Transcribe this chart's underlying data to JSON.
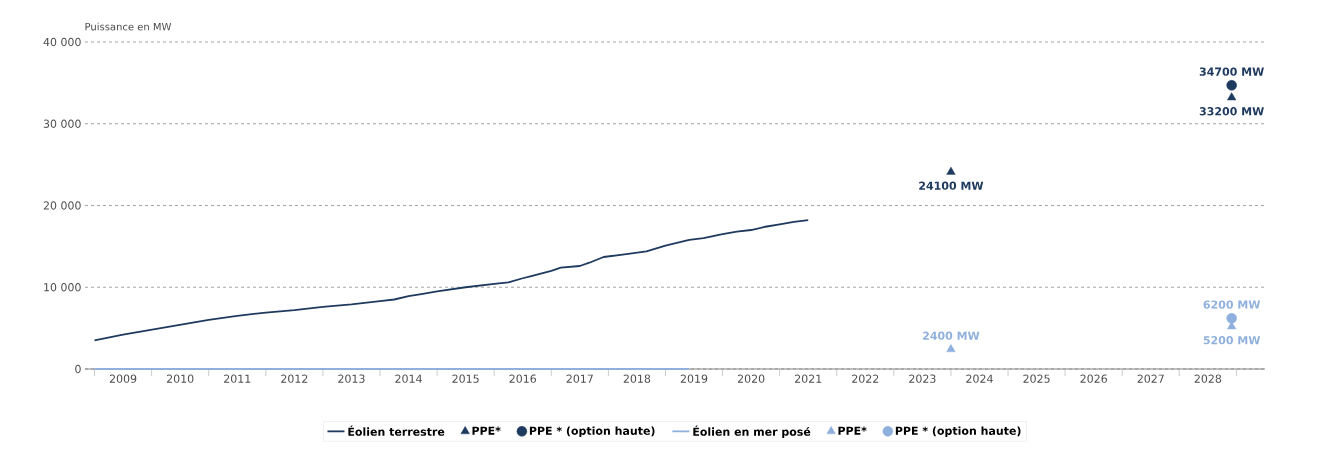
{
  "chart_data": {
    "type": "line",
    "ylabel": "Puissance en MW",
    "xlim": [
      "2008-11",
      "2029-07"
    ],
    "xticks": [
      {
        "value": "2009",
        "label": null
      },
      {
        "value": "2009-07",
        "label": "2009"
      },
      {
        "value": "2010",
        "label": null
      },
      {
        "value": "2010-07",
        "label": "2010"
      },
      {
        "value": "2011",
        "label": null
      },
      {
        "value": "2011-07",
        "label": "2011"
      },
      {
        "value": "2012",
        "label": null
      },
      {
        "value": "2012-07",
        "label": "2012"
      },
      {
        "value": "2013",
        "label": null
      },
      {
        "value": "2013-07",
        "label": "2013"
      },
      {
        "value": "2014",
        "label": null
      },
      {
        "value": "2014-07",
        "label": "2014"
      },
      {
        "value": "2015",
        "label": null
      },
      {
        "value": "2015-07",
        "label": "2015"
      },
      {
        "value": "2016",
        "label": null
      },
      {
        "value": "2016-07",
        "label": "2016"
      },
      {
        "value": "2017",
        "label": null
      },
      {
        "value": "2017-07",
        "label": "2017"
      },
      {
        "value": "2018",
        "label": null
      },
      {
        "value": "2018-07",
        "label": "2018"
      },
      {
        "value": "2019",
        "label": null
      },
      {
        "value": "2019-07",
        "label": "2019"
      },
      {
        "value": "2020",
        "label": null
      },
      {
        "value": "2020-07",
        "label": "2020"
      },
      {
        "value": "2021",
        "label": null
      },
      {
        "value": "2021-07",
        "label": "2021"
      },
      {
        "value": "2022",
        "label": null
      },
      {
        "value": "2022-07",
        "label": "2022"
      },
      {
        "value": "2023",
        "label": null
      },
      {
        "value": "2023-07",
        "label": "2023"
      },
      {
        "value": "2024",
        "label": null
      },
      {
        "value": "2024-07",
        "label": "2024"
      },
      {
        "value": "2025",
        "label": null
      },
      {
        "value": "2025-07",
        "label": "2025"
      },
      {
        "value": "2026",
        "label": null
      },
      {
        "value": "2026-07",
        "label": "2026"
      },
      {
        "value": "2027",
        "label": null
      },
      {
        "value": "2027-07",
        "label": "2027"
      },
      {
        "value": "2028",
        "label": null
      },
      {
        "value": "2028-07",
        "label": "2028"
      },
      {
        "value": "2029",
        "label": null
      }
    ],
    "ylim": [
      0,
      40000
    ],
    "yticks": [
      {
        "value": 0,
        "label": "0"
      },
      {
        "value": 10000,
        "label": "10 000"
      },
      {
        "value": 20000,
        "label": "20 000"
      },
      {
        "value": 30000,
        "label": "30 000"
      },
      {
        "value": 40000,
        "label": "40 000"
      }
    ],
    "grid": "y",
    "legend": "bottom",
    "series": [
      {
        "name": "Éolien terrestre",
        "color": "#1f3a5f",
        "marker": "none",
        "x": [
          "2009-01",
          "2009-07",
          "2010-01",
          "2010-07",
          "2011-01",
          "2011-07",
          "2012-01",
          "2012-07",
          "2013-01",
          "2013-07",
          "2014-01",
          "2014-04",
          "2014-07",
          "2014-10",
          "2015-01",
          "2015-07",
          "2016-01",
          "2016-04",
          "2016-07",
          "2016-09",
          "2017-01",
          "2017-03",
          "2017-07",
          "2017-09",
          "2017-12",
          "2018-04",
          "2018-09",
          "2019-01",
          "2019-06",
          "2019-09",
          "2020-01",
          "2020-04",
          "2020-07",
          "2020-10",
          "2021-01",
          "2021-04",
          "2021-07"
        ],
        "values": [
          3500,
          4200,
          4800,
          5400,
          6000,
          6500,
          6900,
          7200,
          7600,
          7900,
          8300,
          8500,
          8900,
          9200,
          9500,
          10000,
          10400,
          10600,
          11100,
          11400,
          12000,
          12400,
          12600,
          13000,
          13700,
          14000,
          14400,
          15100,
          15800,
          16000,
          16500,
          16800,
          17000,
          17400,
          17700,
          18000,
          18200
        ]
      },
      {
        "name": "PPE*",
        "type": "scatter",
        "color": "#1f3a5f",
        "marker": "triangle",
        "x": [
          "2024-01",
          "2028-12"
        ],
        "values": [
          24100,
          33200
        ],
        "value_labels": [
          "24100 MW",
          "33200 MW"
        ]
      },
      {
        "name": "PPE * (option haute)",
        "type": "scatter",
        "color": "#1f3a5f",
        "marker": "circle",
        "x": [
          "2028-12"
        ],
        "values": [
          34700
        ],
        "value_labels": [
          "34700 MW"
        ]
      },
      {
        "name": "Éolien en mer posé",
        "color": "#8fb0dd",
        "marker": "none",
        "x": [
          "2009-01",
          "2019-06"
        ],
        "values": [
          0,
          0
        ]
      },
      {
        "name": "PPE*",
        "type": "scatter",
        "color": "#8fb0dd",
        "marker": "triangle",
        "x": [
          "2024-01",
          "2028-12"
        ],
        "values": [
          2400,
          5200
        ],
        "value_labels": [
          "2400 MW",
          "5200 MW"
        ]
      },
      {
        "name": "PPE * (option haute)",
        "type": "scatter",
        "color": "#8fb0dd",
        "marker": "circle",
        "x": [
          "2028-12"
        ],
        "values": [
          6200
        ],
        "value_labels": [
          "6200 MW"
        ]
      }
    ]
  }
}
